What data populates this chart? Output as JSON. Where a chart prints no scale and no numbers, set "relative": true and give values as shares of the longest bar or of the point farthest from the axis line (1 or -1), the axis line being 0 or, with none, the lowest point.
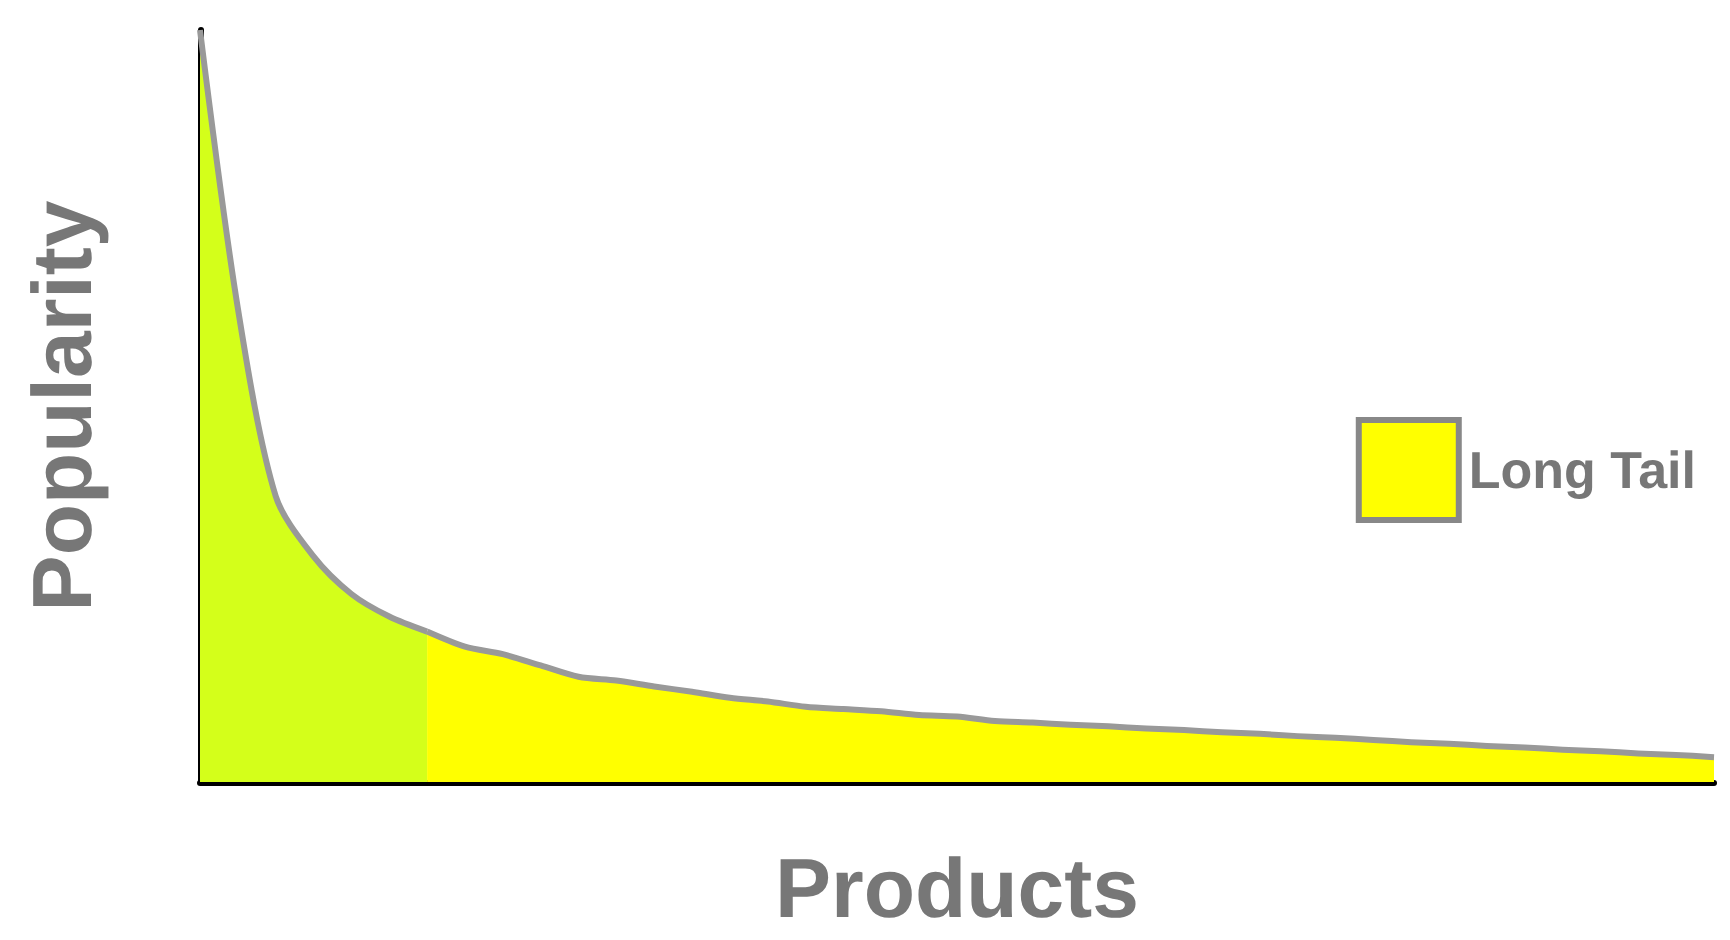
{
  "chart_data": {
    "type": "area",
    "relative": true,
    "xlabel": "Products",
    "ylabel": "Popularity",
    "legend": "right",
    "grid": false,
    "categories": [
      null,
      null,
      null,
      null,
      null,
      null,
      null,
      null,
      null,
      null,
      null,
      null,
      null,
      null,
      null,
      null,
      null,
      null,
      null,
      null,
      null,
      null,
      null,
      null,
      null,
      null,
      null,
      null,
      null,
      null,
      null,
      null,
      null,
      null,
      null,
      null,
      null,
      null,
      null,
      null,
      null
    ],
    "series": [
      {
        "color": "#d4ff1a",
        "values": [
          1,
          0.63,
          0.38,
          0.3,
          0.25,
          0.22,
          0.2,
          null,
          null,
          null,
          null,
          null,
          null,
          null,
          null,
          null,
          null,
          null,
          null,
          null,
          null,
          null,
          null,
          null,
          null,
          null,
          null,
          null,
          null,
          null,
          null,
          null,
          null,
          null,
          null,
          null,
          null,
          null,
          null,
          null,
          null
        ]
      },
      {
        "name": "Long Tail",
        "color": "#ffff00",
        "values": [
          null,
          null,
          null,
          null,
          null,
          null,
          0.2,
          0.18,
          0.17,
          0.155,
          0.14,
          0.135,
          0.127,
          0.12,
          0.112,
          0.107,
          0.1,
          0.097,
          0.094,
          0.089,
          0.087,
          0.081,
          0.079,
          0.076,
          0.074,
          0.071,
          0.069,
          0.066,
          0.064,
          0.061,
          0.059,
          0.056,
          0.053,
          0.051,
          0.048,
          0.046,
          0.043,
          0.041,
          0.038,
          0.036,
          0.033
        ]
      }
    ]
  }
}
